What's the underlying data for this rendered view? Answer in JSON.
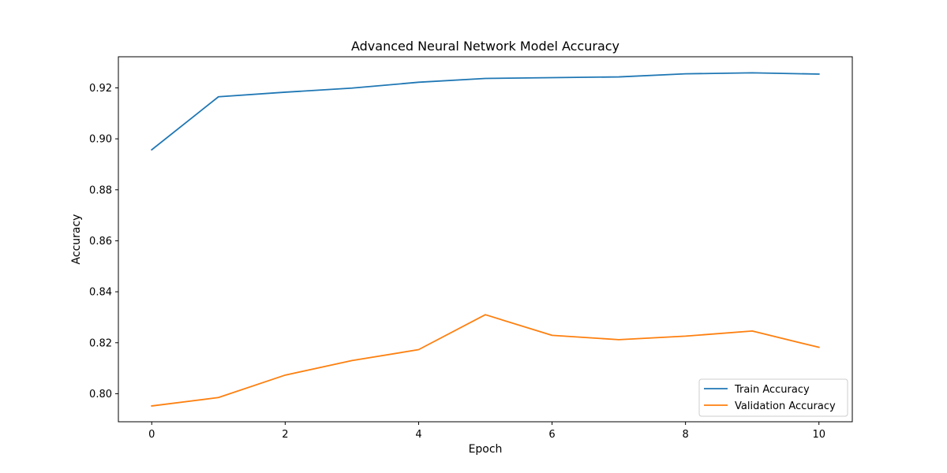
{
  "chart_data": {
    "type": "line",
    "title": "Advanced Neural Network Model Accuracy",
    "xlabel": "Epoch",
    "ylabel": "Accuracy",
    "xlim": [
      -0.5,
      10.5
    ],
    "ylim": [
      0.789,
      0.9322
    ],
    "x_ticks": [
      0,
      2,
      4,
      6,
      8,
      10
    ],
    "y_ticks": [
      0.8,
      0.82,
      0.84,
      0.86,
      0.88,
      0.9,
      0.92
    ],
    "y_tick_labels": [
      "0.80",
      "0.82",
      "0.84",
      "0.86",
      "0.88",
      "0.90",
      "0.92"
    ],
    "grid": false,
    "legend_position": "lower-right",
    "x": [
      0,
      1,
      2,
      3,
      4,
      5,
      6,
      7,
      8,
      9,
      10
    ],
    "series": [
      {
        "name": "Train Accuracy",
        "color": "#1f77b4",
        "values": [
          0.8957,
          0.9165,
          0.9183,
          0.9199,
          0.9222,
          0.9237,
          0.924,
          0.9243,
          0.9255,
          0.9259,
          0.9254
        ]
      },
      {
        "name": "Validation Accuracy",
        "color": "#ff7f0e",
        "values": [
          0.7952,
          0.7985,
          0.8073,
          0.813,
          0.8173,
          0.831,
          0.8229,
          0.8212,
          0.8226,
          0.8246,
          0.8182
        ]
      }
    ]
  }
}
